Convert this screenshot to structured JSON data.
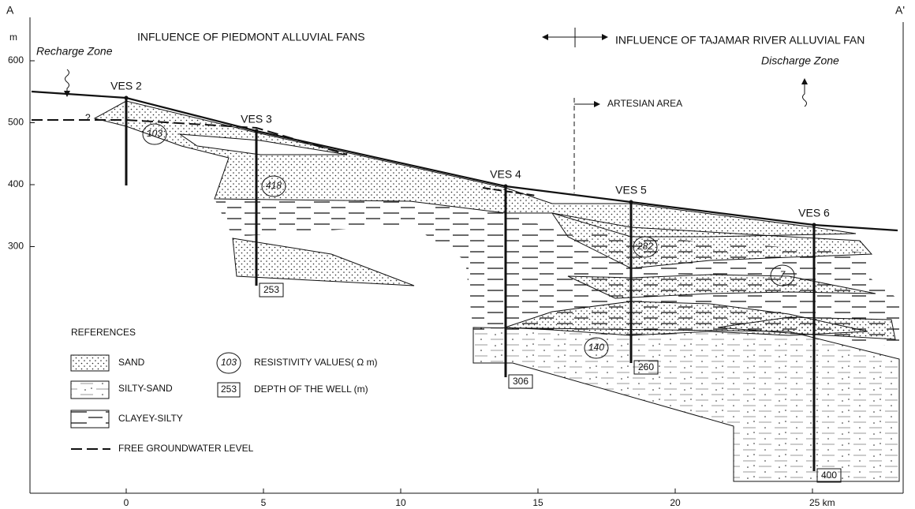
{
  "corner_labels": {
    "left": "A",
    "right": "A'"
  },
  "y_axis": {
    "unit": "m",
    "ticks": [
      600,
      500,
      400,
      300
    ]
  },
  "x_axis": {
    "ticks": [
      0,
      5,
      10,
      15,
      20,
      {
        "value": 25,
        "label": "25 km"
      }
    ]
  },
  "headers": {
    "left": "INFLUENCE OF PIEDMONT ALLUVIAL FANS",
    "right": "INFLUENCE OF TAJAMAR RIVER ALLUVIAL FAN"
  },
  "zones": {
    "recharge": "Recharge Zone",
    "discharge": "Discharge Zone",
    "artesian": "ARTESIAN AREA",
    "unknown": "?"
  },
  "wells": [
    {
      "name": "VES 2"
    },
    {
      "name": "VES 3",
      "depth": 253
    },
    {
      "name": "VES 4",
      "depth": 306
    },
    {
      "name": "VES 5",
      "depth": 260
    },
    {
      "name": "VES 6",
      "depth": 400
    }
  ],
  "resistivity": [
    103,
    418,
    282,
    7,
    140
  ],
  "legend": {
    "title": "REFERENCES",
    "sand": "SAND",
    "silty_sand": "SILTY-SAND",
    "clayey_silty": "CLAYEY-SILTY",
    "groundwater": "FREE GROUNDWATER LEVEL",
    "resistivity_sample": 103,
    "resistivity_label": "RESISTIVITY VALUES( Ω m)",
    "depth_sample": 253,
    "depth_label": "DEPTH OF THE WELL (m)"
  }
}
